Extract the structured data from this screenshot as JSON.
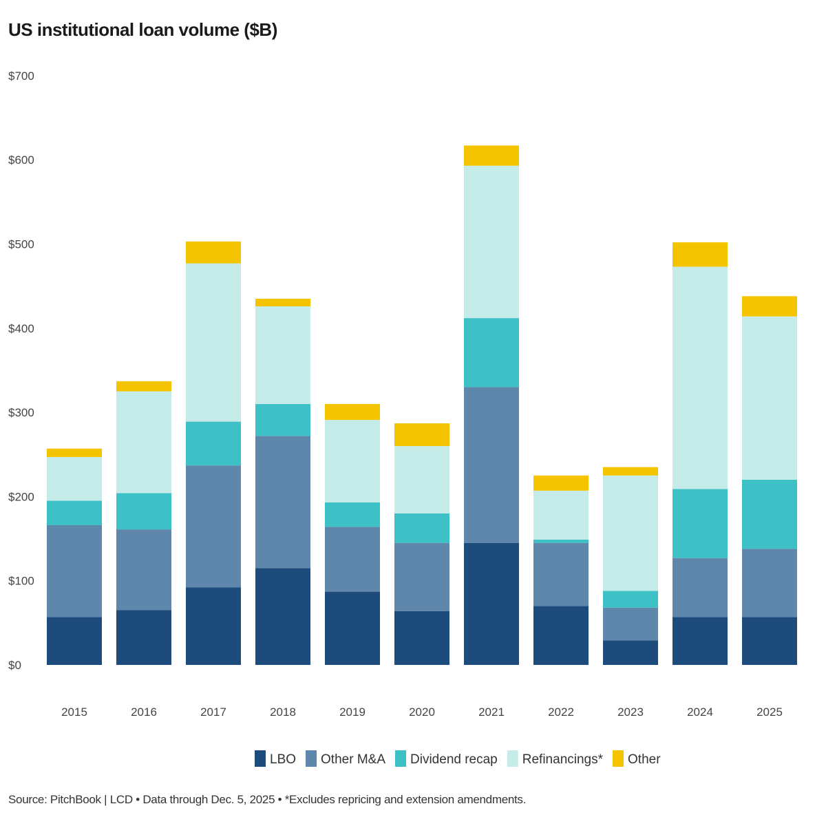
{
  "chart_data": {
    "type": "bar",
    "stacked": true,
    "title": "US institutional loan volume ($B)",
    "xlabel": "",
    "ylabel": "",
    "ylim": [
      0,
      700
    ],
    "yticks": [
      "$0",
      "$100",
      "$200",
      "$300",
      "$400",
      "$500",
      "$600",
      "$700"
    ],
    "grid": false,
    "legend_position": "bottom",
    "categories": [
      "2015",
      "2016",
      "2017",
      "2018",
      "2019",
      "2020",
      "2021",
      "2022",
      "2023",
      "2024",
      "2025"
    ],
    "series": [
      {
        "name": "LBO",
        "color": "#1d4b7c",
        "values": [
          57,
          65,
          92,
          115,
          87,
          64,
          145,
          70,
          29,
          57,
          57
        ]
      },
      {
        "name": "Other M&A",
        "color": "#5f86ab",
        "values": [
          109,
          96,
          145,
          157,
          77,
          81,
          185,
          75,
          39,
          70,
          81
        ]
      },
      {
        "name": "Dividend recap",
        "color": "#3ec1c6",
        "values": [
          29,
          43,
          52,
          38,
          29,
          35,
          82,
          4,
          20,
          82,
          82
        ]
      },
      {
        "name": "Refinancings*",
        "color": "#c6ecea",
        "values": [
          52,
          121,
          188,
          116,
          98,
          80,
          181,
          58,
          137,
          264,
          194
        ]
      },
      {
        "name": "Other",
        "color": "#f5c400",
        "values": [
          10,
          12,
          26,
          9,
          19,
          27,
          24,
          18,
          10,
          29,
          24
        ]
      }
    ],
    "source": "Source: PitchBook | LCD • Data through Dec. 5, 2025 • *Excludes repricing and extension amendments."
  }
}
